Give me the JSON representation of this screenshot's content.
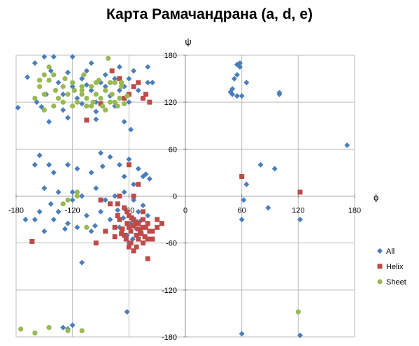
{
  "chart_data": {
    "type": "scatter",
    "title": "Карта Рамачандрана (a, d, e)",
    "xlabel": "ϕ",
    "ylabel": "ψ",
    "xlim": [
      -180,
      180
    ],
    "ylim": [
      -180,
      180
    ],
    "x_ticks": [
      -180,
      -120,
      -60,
      0,
      60,
      120,
      180
    ],
    "y_ticks": [
      -180,
      -120,
      -60,
      0,
      60,
      120,
      180
    ],
    "grid": true,
    "legend_position": "right",
    "series": [
      {
        "name": "All",
        "marker": "diamond",
        "color": "#4a7ebb",
        "points": [
          [
            -178,
            113
          ],
          [
            -168,
            152
          ],
          [
            -160,
            170
          ],
          [
            -158,
            120
          ],
          [
            -153,
            114
          ],
          [
            -145,
            95
          ],
          [
            -148,
            130
          ],
          [
            -143,
            160
          ],
          [
            -135,
            145
          ],
          [
            -130,
            130
          ],
          [
            -125,
            158
          ],
          [
            -120,
            140
          ],
          [
            -115,
            125
          ],
          [
            -110,
            150
          ],
          [
            -105,
            160
          ],
          [
            -100,
            135
          ],
          [
            -95,
            120
          ],
          [
            -90,
            145
          ],
          [
            -85,
            155
          ],
          [
            -80,
            128
          ],
          [
            -75,
            150
          ],
          [
            -70,
            165
          ],
          [
            -65,
            140
          ],
          [
            -60,
            150
          ],
          [
            -55,
            160
          ],
          [
            -50,
            135
          ],
          [
            -45,
            125
          ],
          [
            -40,
            165
          ],
          [
            -35,
            145
          ],
          [
            -130,
            110
          ],
          [
            -110,
            118
          ],
          [
            -95,
            108
          ],
          [
            -75,
            115
          ],
          [
            -60,
            120
          ],
          [
            -140,
            178
          ],
          [
            -120,
            178
          ],
          [
            -85,
            140
          ],
          [
            -105,
            142
          ],
          [
            -150,
            178
          ],
          [
            -100,
            170
          ],
          [
            -70,
            135
          ],
          [
            -125,
            100
          ],
          [
            -65,
            95
          ],
          [
            -58,
            85
          ],
          [
            -95,
            98
          ],
          [
            -40,
            145
          ],
          [
            -155,
            52
          ],
          [
            -160,
            40
          ],
          [
            -145,
            40
          ],
          [
            -140,
            30
          ],
          [
            -125,
            40
          ],
          [
            -115,
            35
          ],
          [
            -100,
            30
          ],
          [
            -90,
            55
          ],
          [
            -80,
            50
          ],
          [
            -70,
            40
          ],
          [
            -65,
            25
          ],
          [
            -55,
            15
          ],
          [
            -50,
            35
          ],
          [
            -45,
            25
          ],
          [
            -42,
            28
          ],
          [
            -38,
            22
          ],
          [
            -88,
            38
          ],
          [
            -60,
            47
          ],
          [
            -150,
            10
          ],
          [
            -135,
            5
          ],
          [
            -120,
            5
          ],
          [
            -110,
            0
          ],
          [
            -95,
            10
          ],
          [
            -85,
            -5
          ],
          [
            -75,
            0
          ],
          [
            -65,
            5
          ],
          [
            -55,
            -5
          ],
          [
            -45,
            -12
          ],
          [
            -50,
            -20
          ],
          [
            -40,
            -25
          ],
          [
            -155,
            -20
          ],
          [
            -140,
            -30
          ],
          [
            -125,
            -35
          ],
          [
            -115,
            -40
          ],
          [
            -105,
            -25
          ],
          [
            -100,
            -45
          ],
          [
            -90,
            -20
          ],
          [
            -80,
            -30
          ],
          [
            -70,
            -40
          ],
          [
            -160,
            -30
          ],
          [
            -150,
            -45
          ],
          [
            -135,
            -20
          ],
          [
            -128,
            -42
          ],
          [
            -96,
            -38
          ],
          [
            -110,
            -85
          ],
          [
            -62,
            -50
          ],
          [
            -60,
            -60
          ],
          [
            -170,
            -30
          ],
          [
            -58,
            -35
          ],
          [
            -52,
            -42
          ],
          [
            -66,
            -28
          ],
          [
            -56,
            -55
          ],
          [
            -48,
            -32
          ],
          [
            -72,
            -18
          ],
          [
            -120,
            -5
          ],
          [
            -143,
            -10
          ],
          [
            -62,
            -148
          ],
          [
            -130,
            -168
          ],
          [
            -125,
            -170
          ],
          [
            -120,
            -165
          ],
          [
            50,
            137
          ],
          [
            50,
            130
          ],
          [
            55,
            128
          ],
          [
            52,
            150
          ],
          [
            55,
            155
          ],
          [
            55,
            168
          ],
          [
            58,
            170
          ],
          [
            58,
            165
          ],
          [
            48,
            133
          ],
          [
            65,
            145
          ],
          [
            100,
            130
          ],
          [
            60,
            128
          ],
          [
            80,
            40
          ],
          [
            95,
            35
          ],
          [
            65,
            15
          ],
          [
            62,
            -5
          ],
          [
            60,
            -30
          ],
          [
            88,
            -15
          ],
          [
            122,
            -30
          ],
          [
            172,
            65
          ],
          [
            60,
            -176
          ],
          [
            122,
            -178
          ],
          [
            100,
            132
          ]
        ]
      },
      {
        "name": "Helix",
        "marker": "square",
        "color": "#be4b48",
        "points": [
          [
            -163,
            -58
          ],
          [
            -105,
            97
          ],
          [
            -90,
            118
          ],
          [
            -78,
            160
          ],
          [
            -70,
            150
          ],
          [
            -65,
            125
          ],
          [
            -60,
            130
          ],
          [
            -55,
            140
          ],
          [
            -50,
            145
          ],
          [
            -45,
            125
          ],
          [
            -42,
            130
          ],
          [
            -38,
            120
          ],
          [
            -60,
            40
          ],
          [
            -50,
            15
          ],
          [
            -70,
            0
          ],
          [
            -65,
            -15
          ],
          [
            -60,
            -25
          ],
          [
            -55,
            -30
          ],
          [
            -50,
            -35
          ],
          [
            -45,
            -40
          ],
          [
            -60,
            -40
          ],
          [
            -70,
            -30
          ],
          [
            -58,
            -45
          ],
          [
            -52,
            -50
          ],
          [
            -48,
            -45
          ],
          [
            -42,
            -40
          ],
          [
            -65,
            -50
          ],
          [
            -62,
            -35
          ],
          [
            -55,
            -38
          ],
          [
            -50,
            -42
          ],
          [
            -45,
            -30
          ],
          [
            -40,
            -35
          ],
          [
            -38,
            -45
          ],
          [
            -67,
            -42
          ],
          [
            -72,
            -25
          ],
          [
            -75,
            -40
          ],
          [
            -57,
            -28
          ],
          [
            -53,
            -33
          ],
          [
            -47,
            -48
          ],
          [
            -43,
            -52
          ],
          [
            -63,
            -55
          ],
          [
            -68,
            -48
          ],
          [
            -58,
            -60
          ],
          [
            -50,
            -55
          ],
          [
            -45,
            -60
          ],
          [
            -52,
            -65
          ],
          [
            -60,
            -65
          ],
          [
            -40,
            -55
          ],
          [
            -35,
            -45
          ],
          [
            -30,
            -40
          ],
          [
            -25,
            -35
          ],
          [
            -40,
            -80
          ],
          [
            -55,
            -70
          ],
          [
            -45,
            -20
          ],
          [
            -30,
            -30
          ],
          [
            -35,
            -55
          ],
          [
            -62,
            -20
          ],
          [
            -72,
            -10
          ],
          [
            -80,
            -10
          ],
          [
            -90,
            -5
          ],
          [
            -85,
            -45
          ],
          [
            -95,
            -60
          ],
          [
            -75,
            -52
          ],
          [
            60,
            25
          ],
          [
            122,
            5
          ],
          [
            -55,
            0
          ]
        ]
      },
      {
        "name": "Sheet",
        "marker": "circle",
        "color": "#98b954",
        "points": [
          [
            -160,
            125
          ],
          [
            -155,
            140
          ],
          [
            -150,
            130
          ],
          [
            -145,
            148
          ],
          [
            -140,
            155
          ],
          [
            -138,
            135
          ],
          [
            -135,
            125
          ],
          [
            -130,
            140
          ],
          [
            -128,
            150
          ],
          [
            -125,
            130
          ],
          [
            -120,
            145
          ],
          [
            -118,
            135
          ],
          [
            -115,
            120
          ],
          [
            -110,
            130
          ],
          [
            -108,
            155
          ],
          [
            -105,
            125
          ],
          [
            -100,
            140
          ],
          [
            -98,
            120
          ],
          [
            -95,
            130
          ],
          [
            -92,
            148
          ],
          [
            -90,
            125
          ],
          [
            -88,
            115
          ],
          [
            -85,
            135
          ],
          [
            -80,
            120
          ],
          [
            -78,
            130
          ],
          [
            -75,
            145
          ],
          [
            -72,
            115
          ],
          [
            -70,
            125
          ],
          [
            -68,
            140
          ],
          [
            -65,
            118
          ],
          [
            -62,
            128
          ],
          [
            -145,
            165
          ],
          [
            -150,
            155
          ],
          [
            -155,
            148
          ],
          [
            -140,
            115
          ],
          [
            -120,
            115
          ],
          [
            -100,
            115
          ],
          [
            -85,
            110
          ],
          [
            -150,
            110
          ],
          [
            -110,
            140
          ],
          [
            -95,
            145
          ],
          [
            -75,
            120
          ],
          [
            -130,
            120
          ],
          [
            -105,
            115
          ],
          [
            -80,
            145
          ],
          [
            -68,
            145
          ],
          [
            -82,
            176
          ],
          [
            -110,
            135
          ],
          [
            -115,
            5
          ],
          [
            -125,
            -5
          ],
          [
            -130,
            -10
          ],
          [
            -105,
            -40
          ],
          [
            -175,
            -170
          ],
          [
            -160,
            -175
          ],
          [
            -145,
            -168
          ],
          [
            -110,
            -172
          ],
          [
            -125,
            -172
          ],
          [
            120,
            -148
          ],
          [
            -115,
            0
          ]
        ]
      }
    ]
  }
}
